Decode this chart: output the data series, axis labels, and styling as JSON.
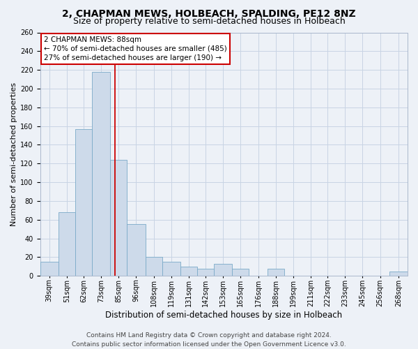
{
  "title": "2, CHAPMAN MEWS, HOLBEACH, SPALDING, PE12 8NZ",
  "subtitle": "Size of property relative to semi-detached houses in Holbeach",
  "xlabel": "Distribution of semi-detached houses by size in Holbeach",
  "ylabel": "Number of semi-detached properties",
  "bins": [
    39,
    51,
    62,
    73,
    85,
    96,
    108,
    119,
    131,
    142,
    153,
    165,
    176,
    188,
    199,
    211,
    222,
    233,
    245,
    256,
    268
  ],
  "heights": [
    15,
    68,
    157,
    218,
    124,
    55,
    20,
    15,
    10,
    8,
    13,
    8,
    0,
    8,
    0,
    0,
    0,
    0,
    0,
    0,
    5
  ],
  "bin_labels": [
    "39sqm",
    "51sqm",
    "62sqm",
    "73sqm",
    "85sqm",
    "96sqm",
    "108sqm",
    "119sqm",
    "131sqm",
    "142sqm",
    "153sqm",
    "165sqm",
    "176sqm",
    "188sqm",
    "199sqm",
    "211sqm",
    "222sqm",
    "233sqm",
    "245sqm",
    "256sqm",
    "268sqm"
  ],
  "bar_color": "#cddaea",
  "bar_edge_color": "#7aaac8",
  "property_line_x": 88,
  "annotation_title": "2 CHAPMAN MEWS: 88sqm",
  "annotation_line1": "← 70% of semi-detached houses are smaller (485)",
  "annotation_line2": "27% of semi-detached houses are larger (190) →",
  "annotation_box_color": "#ffffff",
  "annotation_box_edge": "#cc0000",
  "vline_color": "#cc0000",
  "ylim": [
    0,
    260
  ],
  "yticks": [
    0,
    20,
    40,
    60,
    80,
    100,
    120,
    140,
    160,
    180,
    200,
    220,
    240,
    260
  ],
  "grid_color": "#c8d4e4",
  "background_color": "#edf1f7",
  "footer_line1": "Contains HM Land Registry data © Crown copyright and database right 2024.",
  "footer_line2": "Contains public sector information licensed under the Open Government Licence v3.0.",
  "title_fontsize": 10,
  "subtitle_fontsize": 9,
  "xlabel_fontsize": 8.5,
  "ylabel_fontsize": 8,
  "tick_fontsize": 7,
  "annot_fontsize": 7.5,
  "footer_fontsize": 6.5
}
